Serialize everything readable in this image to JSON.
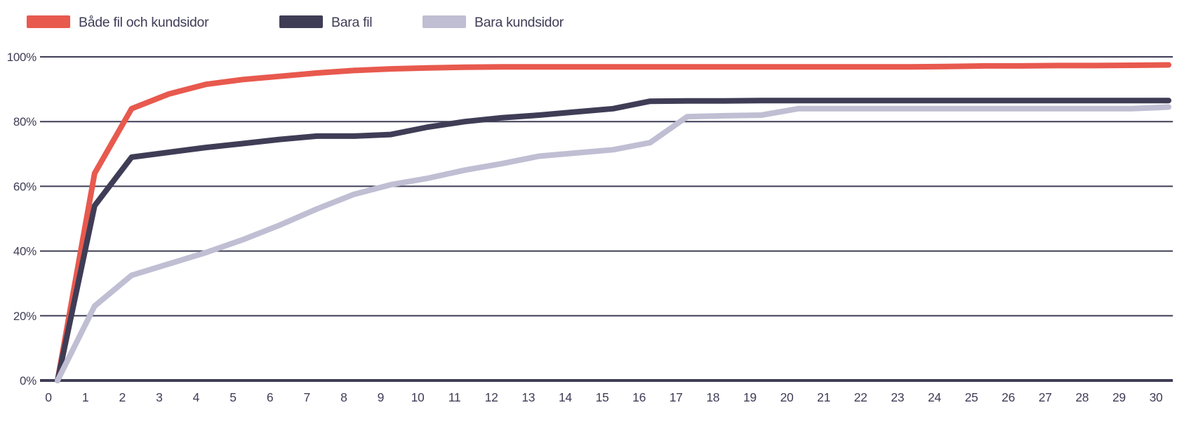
{
  "chart": {
    "background_color": "#ffffff",
    "text_color": "#3f3d56",
    "gridline_color": "#3f3d56",
    "axis_line_color": "#3f3d56"
  },
  "chart_data": {
    "type": "line",
    "title": "",
    "xlabel": "",
    "ylabel": "",
    "xlim": [
      0,
      30
    ],
    "ylim": [
      0,
      100
    ],
    "grid": "horizontal",
    "legend_position": "top-left",
    "x": [
      0,
      1,
      2,
      3,
      4,
      5,
      6,
      7,
      8,
      9,
      10,
      11,
      12,
      13,
      14,
      15,
      16,
      17,
      18,
      19,
      20,
      21,
      22,
      23,
      24,
      25,
      26,
      27,
      28,
      29,
      30
    ],
    "x_tick_labels": [
      "0",
      "1",
      "2",
      "3",
      "4",
      "5",
      "6",
      "7",
      "8",
      "9",
      "10",
      "11",
      "12",
      "13",
      "14",
      "15",
      "16",
      "17",
      "18",
      "19",
      "20",
      "21",
      "22",
      "23",
      "24",
      "25",
      "26",
      "27",
      "28",
      "29",
      "30"
    ],
    "y_tick_labels": [
      "0%",
      "20%",
      "40%",
      "60%",
      "80%",
      "100%"
    ],
    "y_tick_values": [
      0,
      20,
      40,
      60,
      80,
      100
    ],
    "series": [
      {
        "name": "Både fil och kundsidor",
        "color": "#e8594e",
        "values": [
          0,
          64,
          84,
          88.5,
          91.5,
          93,
          94,
          95,
          95.8,
          96.3,
          96.6,
          96.8,
          96.9,
          96.9,
          96.9,
          96.9,
          96.9,
          96.9,
          96.9,
          96.9,
          96.9,
          96.9,
          96.9,
          96.9,
          97,
          97.2,
          97.2,
          97.3,
          97.3,
          97.4,
          97.5
        ]
      },
      {
        "name": "Bara fil",
        "color": "#3f3d56",
        "values": [
          0,
          54,
          69,
          70.5,
          72,
          73.2,
          74.5,
          75.5,
          75.5,
          76,
          78.3,
          80,
          81.2,
          82,
          83,
          84,
          86.3,
          86.4,
          86.4,
          86.5,
          86.5,
          86.5,
          86.5,
          86.5,
          86.5,
          86.5,
          86.5,
          86.5,
          86.5,
          86.5,
          86.5
        ]
      },
      {
        "name": "Bara kundsidor",
        "color": "#bfbed3",
        "values": [
          0,
          23,
          32.5,
          36,
          39.5,
          43.5,
          48,
          53,
          57.5,
          60.5,
          62.5,
          65,
          67,
          69.3,
          70.3,
          71.3,
          73.5,
          81.5,
          81.8,
          82,
          84,
          84,
          84,
          84,
          84,
          84,
          84,
          84,
          84,
          84,
          84.5
        ]
      }
    ]
  }
}
